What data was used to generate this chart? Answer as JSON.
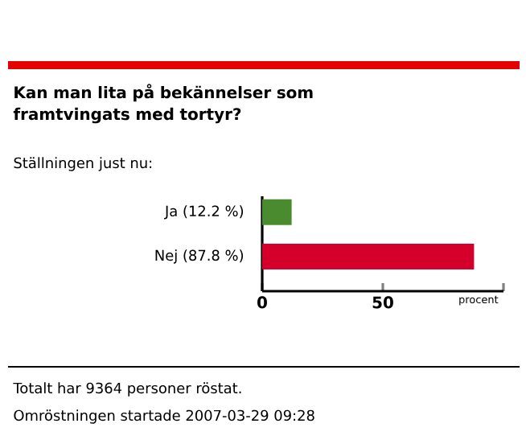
{
  "chart_data": {
    "type": "bar",
    "orientation": "horizontal",
    "title": "Kan man lita på bekännelser som framtvingats med tortyr?",
    "subtitle": "Ställningen just nu:",
    "xlabel": "procent",
    "categories": [
      "Ja (12.2 %)",
      "Nej (87.8 %)"
    ],
    "values": [
      12.2,
      87.8
    ],
    "colors": [
      "#4b8b2f",
      "#d4002b"
    ],
    "xlim": [
      0,
      100
    ],
    "xticks": [
      0,
      50,
      {
        "value": 100,
        "label": null
      }
    ],
    "annotations": [
      "Totalt har 9364 personer röstat.",
      "Omröstningen startade 2007-03-29 09:28"
    ]
  }
}
